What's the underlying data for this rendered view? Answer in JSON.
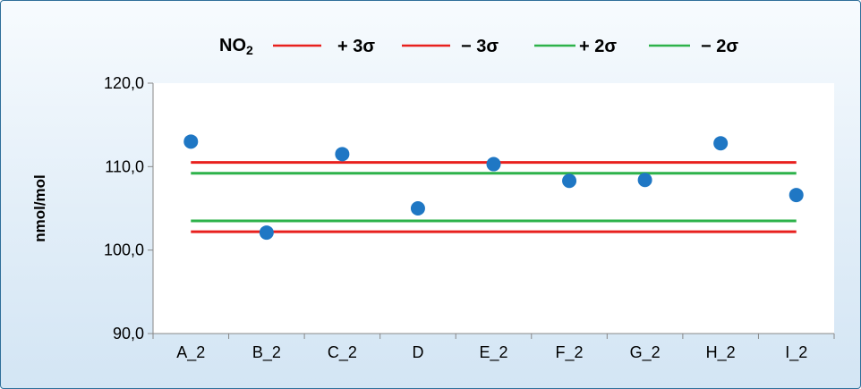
{
  "chart_data": {
    "type": "scatter",
    "title": "",
    "xlabel": "",
    "ylabel": "nmol/mol",
    "categories": [
      "A_2",
      "B_2",
      "C_2",
      "D",
      "E_2",
      "F_2",
      "G_2",
      "H_2",
      "I_2"
    ],
    "series": [
      {
        "name": "NO₂",
        "kind": "points",
        "color": "#1f77c4",
        "values": [
          113.0,
          102.1,
          111.5,
          105.0,
          110.3,
          108.3,
          108.4,
          112.8,
          106.6
        ]
      }
    ],
    "limits": [
      {
        "name": "+ 3σ",
        "value": 110.5,
        "color": "#e8201e"
      },
      {
        "name": "− 3σ",
        "value": 102.2,
        "color": "#e8201e"
      },
      {
        "name": "+ 2σ",
        "value": 109.2,
        "color": "#2db24a"
      },
      {
        "name": "− 2σ",
        "value": 103.5,
        "color": "#2db24a"
      }
    ],
    "ylim": [
      90.0,
      120.0
    ],
    "yticks": [
      "90,0",
      "100,0",
      "110,0",
      "120,0"
    ],
    "grid": false,
    "legend_position": "top"
  }
}
